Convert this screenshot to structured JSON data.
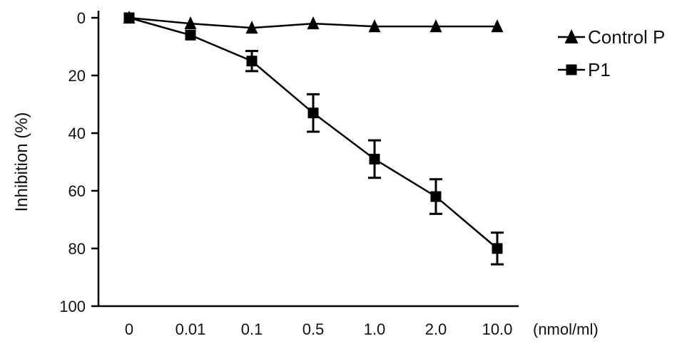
{
  "chart_data": {
    "type": "line",
    "title": "",
    "xlabel": "",
    "x_unit": "(nmol/ml)",
    "ylabel": "Inhibition (%)",
    "ylim": [
      0,
      100
    ],
    "y_inverted": true,
    "yticks": [
      "0",
      "20",
      "40",
      "60",
      "80",
      "100"
    ],
    "categories": [
      "0",
      "0.01",
      "0.1",
      "0.5",
      "1.0",
      "2.0",
      "10.0"
    ],
    "legend_position": "top-right",
    "grid": false,
    "series": [
      {
        "name": "Control P",
        "marker": "triangle",
        "values": [
          0,
          2,
          3.5,
          2,
          3,
          3,
          3
        ]
      },
      {
        "name": "P1",
        "marker": "square",
        "values": [
          0,
          6,
          15,
          33,
          49,
          62,
          80
        ],
        "error": [
          0,
          0,
          3.5,
          6.5,
          6.5,
          6,
          5.5
        ]
      }
    ],
    "colors": {
      "line": "#000000"
    }
  }
}
